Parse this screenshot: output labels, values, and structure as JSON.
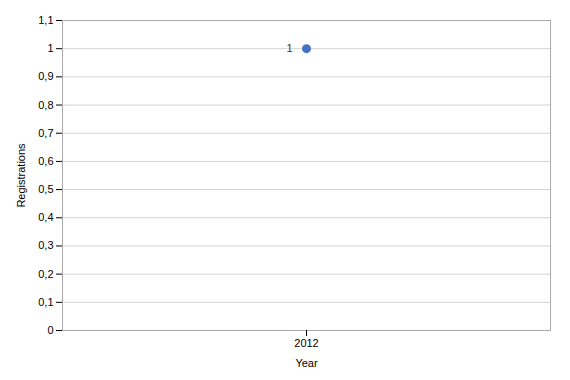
{
  "chart_data": {
    "type": "scatter",
    "x": [
      2012
    ],
    "values": [
      1
    ],
    "color": "#4472C4",
    "xlabel": "Year",
    "ylabel": "Registrations",
    "xlim": [
      2009.5,
      2014.5
    ],
    "xticks": [
      2012
    ],
    "ylim": [
      0,
      1.1
    ],
    "yticks": [
      0,
      {
        "value": 0.1,
        "label": "0,1"
      },
      {
        "value": 0.2,
        "label": "0,2"
      },
      {
        "value": 0.3,
        "label": "0,3"
      },
      {
        "value": 0.4,
        "label": "0,4"
      },
      {
        "value": 0.5,
        "label": "0,5"
      },
      {
        "value": 0.6,
        "label": "0,6"
      },
      {
        "value": 0.7,
        "label": "0,7"
      },
      {
        "value": 0.8,
        "label": "0,8"
      },
      {
        "value": 0.9,
        "label": "0,9"
      },
      1,
      {
        "value": 1.1,
        "label": "1,1"
      }
    ],
    "grid": "y",
    "annotations": [
      {
        "x": 2012,
        "y": 1,
        "text": "1"
      }
    ]
  }
}
